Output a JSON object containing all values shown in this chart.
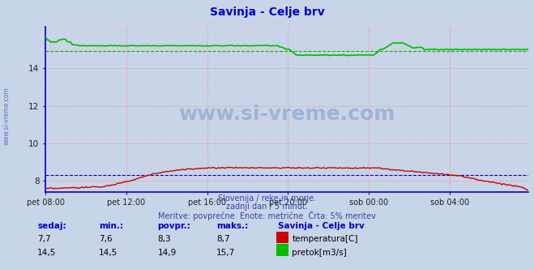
{
  "title": "Savinja - Celje brv",
  "title_color": "#0000cc",
  "bg_color": "#c8d4e8",
  "plot_bg_color": "#c8d4e8",
  "spine_color": "#0000cc",
  "grid_color_major": "#ff8888",
  "grid_color_minor": "#ffbbbb",
  "xlim": [
    0,
    287
  ],
  "ylim": [
    7.4,
    16.2
  ],
  "yticks": [
    8,
    10,
    12,
    14
  ],
  "xtick_labels": [
    "pet 08:00",
    "pet 12:00",
    "pet 16:00",
    "pet 20:00",
    "sob 00:00",
    "sob 04:00"
  ],
  "xtick_positions": [
    0,
    48,
    96,
    144,
    192,
    240
  ],
  "temp_color": "#cc0000",
  "flow_color": "#00bb00",
  "temp_avg_color": "#0000cc",
  "flow_avg_color": "#00bb00",
  "watermark_text": "www.si-vreme.com",
  "footer_line1": "Slovenija / reke in morje.",
  "footer_line2": "zadnji dan / 5 minut.",
  "footer_line3": "Meritve: povprečne  Enote: metrične  Črta: 5% meritev",
  "label_sedaj": "sedaj:",
  "label_min": "min.:",
  "label_povpr": "povpr.:",
  "label_maks": "maks.:",
  "label_station": "Savinja - Celje brv",
  "temp_sedaj": "7,7",
  "temp_min": "7,6",
  "temp_povpr": "8,3",
  "temp_maks": "8,7",
  "flow_sedaj": "14,5",
  "flow_min": "14,5",
  "flow_povpr": "14,9",
  "flow_maks": "15,7",
  "temp_label": "temperatura[C]",
  "flow_label": "pretok[m3/s]",
  "temp_avg": 8.3,
  "flow_avg": 14.9,
  "watermark_color": "#2255aa",
  "sidebar_text": "www.si-vreme.com",
  "sidebar_color": "#2255aa",
  "text_color": "#3344aa",
  "stats_header_color": "#0000cc",
  "stats_value_color": "#000000"
}
